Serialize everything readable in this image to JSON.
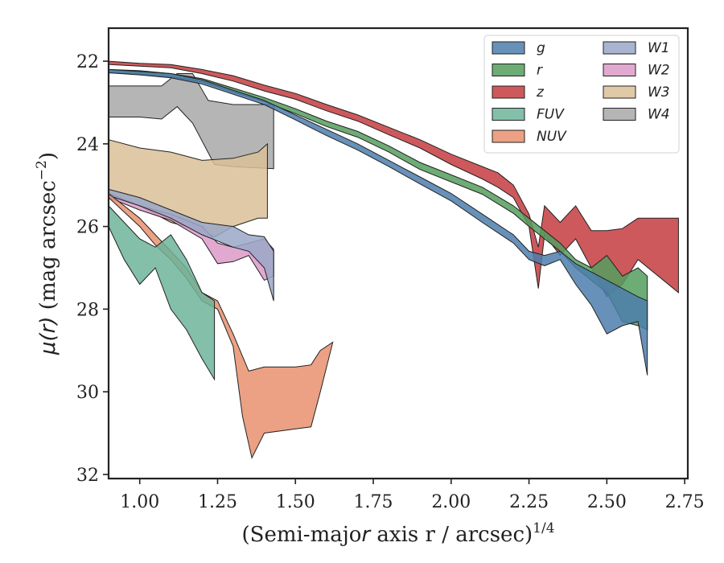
{
  "chart_data": {
    "type": "area",
    "xlabel": "(Semi-major axis r / arcsec)^{1/4}",
    "ylabel": "μ(r) (mag arcsec^{−2})",
    "xlim": [
      0.9,
      2.76
    ],
    "ylim": [
      32.1,
      21.2
    ],
    "y_inverted": true,
    "xticks": [
      "1.00",
      "1.25",
      "1.50",
      "1.75",
      "2.00",
      "2.25",
      "2.50",
      "2.75"
    ],
    "xtick_values": [
      1.0,
      1.25,
      1.5,
      1.75,
      2.0,
      2.25,
      2.5,
      2.75
    ],
    "yticks": [
      "22",
      "24",
      "26",
      "28",
      "30",
      "32"
    ],
    "ytick_values": [
      22,
      24,
      26,
      28,
      30,
      32
    ],
    "grid": false,
    "legend": {
      "placement": "top-right",
      "columns": 2
    },
    "series": [
      {
        "name": "g",
        "color": "#4c7eab",
        "upper": [
          [
            0.9,
            22.2
          ],
          [
            1.0,
            22.25
          ],
          [
            1.1,
            22.3
          ],
          [
            1.2,
            22.45
          ],
          [
            1.3,
            22.7
          ],
          [
            1.4,
            22.95
          ],
          [
            1.5,
            23.3
          ],
          [
            1.6,
            23.65
          ],
          [
            1.7,
            24.0
          ],
          [
            1.8,
            24.4
          ],
          [
            1.9,
            24.8
          ],
          [
            2.0,
            25.2
          ],
          [
            2.1,
            25.7
          ],
          [
            2.2,
            26.2
          ],
          [
            2.25,
            26.6
          ],
          [
            2.3,
            26.7
          ],
          [
            2.35,
            26.6
          ],
          [
            2.4,
            26.9
          ],
          [
            2.45,
            27.1
          ],
          [
            2.5,
            27.3
          ],
          [
            2.55,
            27.5
          ],
          [
            2.6,
            27.7
          ],
          [
            2.63,
            27.8
          ]
        ],
        "lower": [
          [
            0.9,
            22.28
          ],
          [
            1.0,
            22.33
          ],
          [
            1.1,
            22.4
          ],
          [
            1.2,
            22.55
          ],
          [
            1.3,
            22.8
          ],
          [
            1.4,
            23.05
          ],
          [
            1.5,
            23.42
          ],
          [
            1.6,
            23.8
          ],
          [
            1.7,
            24.15
          ],
          [
            1.8,
            24.55
          ],
          [
            1.9,
            24.97
          ],
          [
            2.0,
            25.38
          ],
          [
            2.1,
            25.9
          ],
          [
            2.2,
            26.4
          ],
          [
            2.25,
            26.8
          ],
          [
            2.3,
            26.95
          ],
          [
            2.35,
            26.8
          ],
          [
            2.4,
            27.4
          ],
          [
            2.45,
            27.9
          ],
          [
            2.5,
            28.6
          ],
          [
            2.55,
            28.4
          ],
          [
            2.6,
            28.3
          ],
          [
            2.63,
            29.6
          ]
        ]
      },
      {
        "name": "r",
        "color": "#559d5e",
        "upper": [
          [
            0.9,
            22.2
          ],
          [
            1.0,
            22.23
          ],
          [
            1.1,
            22.3
          ],
          [
            1.2,
            22.42
          ],
          [
            1.3,
            22.65
          ],
          [
            1.4,
            22.88
          ],
          [
            1.5,
            23.15
          ],
          [
            1.6,
            23.45
          ],
          [
            1.7,
            23.7
          ],
          [
            1.8,
            24.05
          ],
          [
            1.9,
            24.45
          ],
          [
            2.0,
            24.75
          ],
          [
            2.1,
            25.05
          ],
          [
            2.2,
            25.5
          ],
          [
            2.25,
            25.8
          ],
          [
            2.3,
            26.1
          ],
          [
            2.35,
            26.4
          ],
          [
            2.4,
            26.8
          ],
          [
            2.45,
            27.0
          ],
          [
            2.5,
            26.7
          ],
          [
            2.55,
            27.2
          ],
          [
            2.6,
            27.0
          ],
          [
            2.63,
            27.2
          ]
        ],
        "lower": [
          [
            0.9,
            22.28
          ],
          [
            1.0,
            22.31
          ],
          [
            1.1,
            22.38
          ],
          [
            1.2,
            22.5
          ],
          [
            1.3,
            22.75
          ],
          [
            1.4,
            22.98
          ],
          [
            1.5,
            23.27
          ],
          [
            1.6,
            23.58
          ],
          [
            1.7,
            23.84
          ],
          [
            1.8,
            24.2
          ],
          [
            1.9,
            24.62
          ],
          [
            2.0,
            24.92
          ],
          [
            2.1,
            25.22
          ],
          [
            2.2,
            25.68
          ],
          [
            2.25,
            26.0
          ],
          [
            2.3,
            26.3
          ],
          [
            2.35,
            26.6
          ],
          [
            2.4,
            27.0
          ],
          [
            2.45,
            27.3
          ],
          [
            2.5,
            27.6
          ],
          [
            2.55,
            28.3
          ],
          [
            2.6,
            28.4
          ],
          [
            2.63,
            28.5
          ]
        ]
      },
      {
        "name": "z",
        "color": "#c43c3f",
        "upper": [
          [
            0.9,
            22.0
          ],
          [
            1.0,
            22.05
          ],
          [
            1.1,
            22.08
          ],
          [
            1.2,
            22.2
          ],
          [
            1.3,
            22.35
          ],
          [
            1.4,
            22.58
          ],
          [
            1.5,
            22.78
          ],
          [
            1.6,
            23.05
          ],
          [
            1.7,
            23.3
          ],
          [
            1.8,
            23.6
          ],
          [
            1.9,
            23.9
          ],
          [
            2.0,
            24.25
          ],
          [
            2.1,
            24.55
          ],
          [
            2.15,
            24.7
          ],
          [
            2.2,
            25.0
          ],
          [
            2.25,
            25.7
          ],
          [
            2.28,
            26.5
          ],
          [
            2.3,
            25.5
          ],
          [
            2.35,
            25.9
          ],
          [
            2.4,
            25.5
          ],
          [
            2.45,
            26.1
          ],
          [
            2.5,
            26.1
          ],
          [
            2.55,
            26.05
          ],
          [
            2.6,
            25.8
          ],
          [
            2.73,
            25.8
          ]
        ],
        "lower": [
          [
            0.9,
            22.08
          ],
          [
            1.0,
            22.12
          ],
          [
            1.1,
            22.16
          ],
          [
            1.2,
            22.3
          ],
          [
            1.3,
            22.48
          ],
          [
            1.4,
            22.72
          ],
          [
            1.5,
            22.92
          ],
          [
            1.6,
            23.2
          ],
          [
            1.7,
            23.45
          ],
          [
            1.8,
            23.78
          ],
          [
            1.9,
            24.1
          ],
          [
            2.0,
            24.5
          ],
          [
            2.1,
            24.85
          ],
          [
            2.15,
            25.05
          ],
          [
            2.2,
            25.3
          ],
          [
            2.25,
            26.0
          ],
          [
            2.28,
            27.5
          ],
          [
            2.3,
            26.2
          ],
          [
            2.35,
            26.7
          ],
          [
            2.4,
            26.3
          ],
          [
            2.45,
            27.0
          ],
          [
            2.5,
            27.7
          ],
          [
            2.55,
            27.4
          ],
          [
            2.6,
            26.8
          ],
          [
            2.73,
            27.6
          ]
        ]
      },
      {
        "name": "FUV",
        "color": "#6db49a",
        "upper": [
          [
            0.9,
            25.5
          ],
          [
            0.95,
            25.9
          ],
          [
            1.0,
            26.3
          ],
          [
            1.05,
            26.5
          ],
          [
            1.1,
            26.2
          ],
          [
            1.15,
            26.8
          ],
          [
            1.2,
            27.6
          ],
          [
            1.24,
            27.8
          ]
        ],
        "lower": [
          [
            0.9,
            26.0
          ],
          [
            0.95,
            26.8
          ],
          [
            1.0,
            27.4
          ],
          [
            1.05,
            27.0
          ],
          [
            1.1,
            28.0
          ],
          [
            1.15,
            28.5
          ],
          [
            1.2,
            29.2
          ],
          [
            1.24,
            29.7
          ]
        ]
      },
      {
        "name": "NUV",
        "color": "#e9916f",
        "upper": [
          [
            0.9,
            25.2
          ],
          [
            0.95,
            25.5
          ],
          [
            1.0,
            25.8
          ],
          [
            1.05,
            26.2
          ],
          [
            1.1,
            26.6
          ],
          [
            1.15,
            27.0
          ],
          [
            1.2,
            27.6
          ],
          [
            1.25,
            27.8
          ],
          [
            1.3,
            28.6
          ],
          [
            1.35,
            29.5
          ],
          [
            1.4,
            29.4
          ],
          [
            1.5,
            29.4
          ],
          [
            1.55,
            29.35
          ],
          [
            1.58,
            29.0
          ],
          [
            1.62,
            28.8
          ]
        ],
        "lower": [
          [
            0.9,
            25.3
          ],
          [
            0.95,
            25.65
          ],
          [
            1.0,
            26.0
          ],
          [
            1.05,
            26.45
          ],
          [
            1.1,
            26.8
          ],
          [
            1.15,
            27.25
          ],
          [
            1.2,
            27.8
          ],
          [
            1.25,
            28.0
          ],
          [
            1.3,
            28.9
          ],
          [
            1.33,
            30.6
          ],
          [
            1.36,
            31.6
          ],
          [
            1.4,
            31.0
          ],
          [
            1.5,
            30.9
          ],
          [
            1.55,
            30.85
          ],
          [
            1.58,
            30.0
          ],
          [
            1.62,
            28.8
          ]
        ]
      },
      {
        "name": "W1",
        "color": "#9aa8c8",
        "upper": [
          [
            0.9,
            25.1
          ],
          [
            1.0,
            25.3
          ],
          [
            1.1,
            25.6
          ],
          [
            1.2,
            25.9
          ],
          [
            1.3,
            26.0
          ],
          [
            1.35,
            26.2
          ],
          [
            1.4,
            26.25
          ],
          [
            1.43,
            26.6
          ]
        ],
        "lower": [
          [
            0.9,
            25.25
          ],
          [
            1.0,
            25.5
          ],
          [
            1.1,
            25.8
          ],
          [
            1.2,
            26.2
          ],
          [
            1.3,
            26.5
          ],
          [
            1.35,
            26.6
          ],
          [
            1.4,
            27.0
          ],
          [
            1.43,
            27.8
          ]
        ]
      },
      {
        "name": "W2",
        "color": "#dd9ac8",
        "upper": [
          [
            0.9,
            25.2
          ],
          [
            1.0,
            25.5
          ],
          [
            1.1,
            25.7
          ],
          [
            1.2,
            26.0
          ],
          [
            1.25,
            26.4
          ],
          [
            1.3,
            26.5
          ],
          [
            1.35,
            26.4
          ],
          [
            1.4,
            26.3
          ],
          [
            1.43,
            26.55
          ]
        ],
        "lower": [
          [
            0.9,
            25.3
          ],
          [
            1.0,
            25.6
          ],
          [
            1.1,
            25.85
          ],
          [
            1.2,
            26.3
          ],
          [
            1.25,
            26.9
          ],
          [
            1.3,
            26.85
          ],
          [
            1.35,
            26.7
          ],
          [
            1.4,
            27.3
          ],
          [
            1.43,
            27.2
          ]
        ]
      },
      {
        "name": "W3",
        "color": "#dbbf96",
        "upper": [
          [
            0.9,
            23.9
          ],
          [
            1.0,
            24.1
          ],
          [
            1.1,
            24.2
          ],
          [
            1.2,
            24.4
          ],
          [
            1.3,
            24.35
          ],
          [
            1.38,
            24.2
          ],
          [
            1.41,
            24.0
          ]
        ],
        "lower": [
          [
            0.9,
            25.2
          ],
          [
            1.0,
            25.5
          ],
          [
            1.1,
            25.9
          ],
          [
            1.2,
            26.1
          ],
          [
            1.24,
            26.25
          ],
          [
            1.3,
            26.0
          ],
          [
            1.38,
            25.8
          ],
          [
            1.41,
            25.8
          ]
        ]
      },
      {
        "name": "W4",
        "color": "#a8a8a8",
        "upper": [
          [
            0.9,
            22.6
          ],
          [
            1.0,
            22.6
          ],
          [
            1.07,
            22.6
          ],
          [
            1.12,
            22.3
          ],
          [
            1.17,
            22.3
          ],
          [
            1.22,
            22.95
          ],
          [
            1.3,
            23.05
          ],
          [
            1.43,
            23.05
          ]
        ],
        "lower": [
          [
            0.9,
            23.35
          ],
          [
            1.0,
            23.35
          ],
          [
            1.07,
            23.4
          ],
          [
            1.12,
            23.1
          ],
          [
            1.17,
            23.5
          ],
          [
            1.24,
            24.5
          ],
          [
            1.3,
            24.55
          ],
          [
            1.43,
            24.6
          ]
        ]
      }
    ]
  }
}
